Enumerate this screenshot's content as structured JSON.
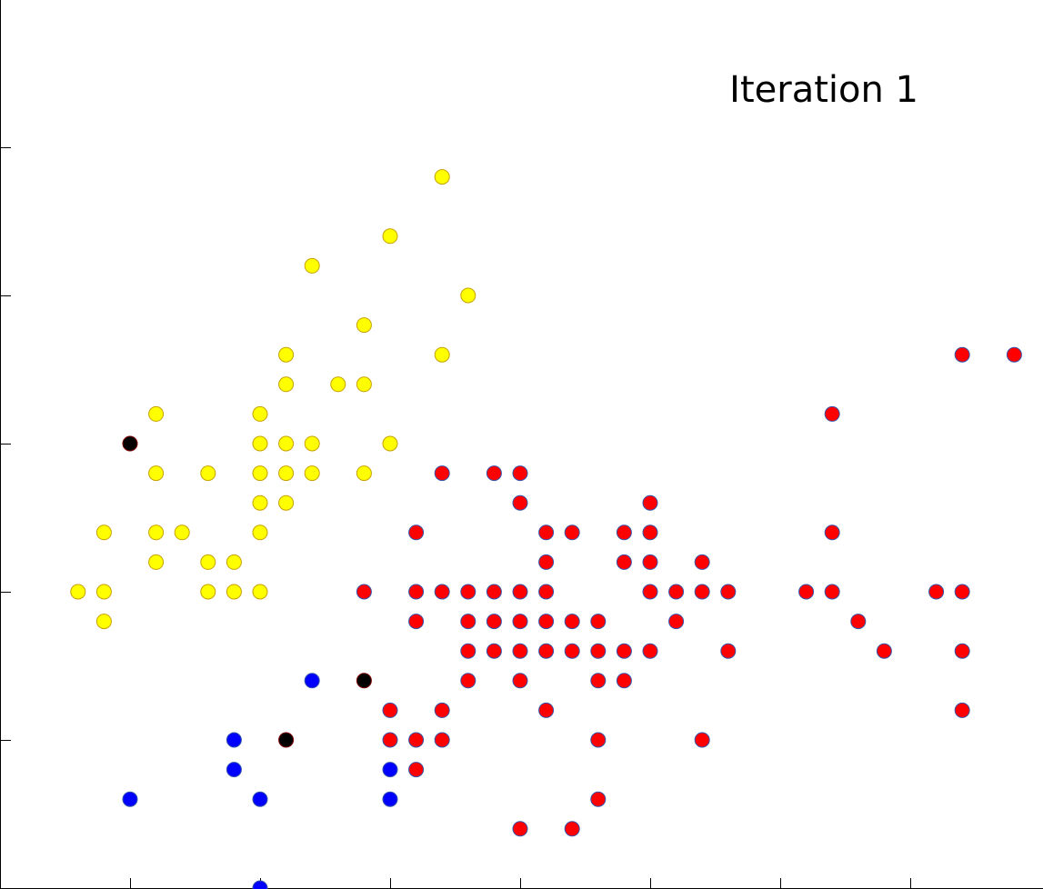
{
  "chart_data": {
    "type": "scatter",
    "title": "Iteration 1",
    "xlabel": "",
    "ylabel": "",
    "xlim": [
      4.2,
      8.0
    ],
    "ylim": [
      1.95,
      4.95
    ],
    "xticks": [
      4.5,
      5.0,
      5.5,
      6.0,
      6.5,
      7.0,
      7.5
    ],
    "yticks": [
      2.0,
      2.5,
      3.0,
      3.5,
      4.0,
      4.5
    ],
    "grid": false,
    "legend": "none",
    "series": [
      {
        "color": "#ffff00",
        "edgecolor": "#c8a000",
        "points": [
          [
            5.7,
            4.4
          ],
          [
            5.5,
            4.2
          ],
          [
            5.2,
            4.1
          ],
          [
            5.8,
            4.0
          ],
          [
            5.4,
            3.9
          ],
          [
            5.7,
            3.8
          ],
          [
            5.1,
            3.8
          ],
          [
            5.1,
            3.7
          ],
          [
            5.3,
            3.7
          ],
          [
            5.4,
            3.7
          ],
          [
            4.6,
            3.6
          ],
          [
            5.0,
            3.6
          ],
          [
            5.5,
            3.5
          ],
          [
            5.1,
            3.5
          ],
          [
            5.0,
            3.5
          ],
          [
            5.2,
            3.5
          ],
          [
            4.8,
            3.4
          ],
          [
            5.4,
            3.4
          ],
          [
            5.0,
            3.4
          ],
          [
            5.1,
            3.4
          ],
          [
            5.2,
            3.4
          ],
          [
            4.6,
            3.4
          ],
          [
            5.0,
            3.3
          ],
          [
            5.1,
            3.3
          ],
          [
            4.4,
            3.2
          ],
          [
            4.6,
            3.2
          ],
          [
            4.7,
            3.2
          ],
          [
            5.0,
            3.2
          ],
          [
            4.6,
            3.1
          ],
          [
            4.8,
            3.1
          ],
          [
            4.9,
            3.1
          ],
          [
            4.3,
            3.0
          ],
          [
            4.4,
            3.0
          ],
          [
            4.8,
            3.0
          ],
          [
            4.9,
            3.0
          ],
          [
            5.0,
            3.0
          ],
          [
            4.4,
            2.9
          ]
        ]
      },
      {
        "color": "#ff0000",
        "edgecolor": "#3355aa",
        "points": [
          [
            7.7,
            3.8
          ],
          [
            7.9,
            3.8
          ],
          [
            7.2,
            3.6
          ],
          [
            5.7,
            3.4
          ],
          [
            5.9,
            3.4
          ],
          [
            6.0,
            3.4
          ],
          [
            6.0,
            3.3
          ],
          [
            6.5,
            3.3
          ],
          [
            5.6,
            3.2
          ],
          [
            6.1,
            3.2
          ],
          [
            6.2,
            3.2
          ],
          [
            6.4,
            3.2
          ],
          [
            6.5,
            3.2
          ],
          [
            7.2,
            3.2
          ],
          [
            6.1,
            3.1
          ],
          [
            6.5,
            3.1
          ],
          [
            6.4,
            3.1
          ],
          [
            6.7,
            3.1
          ],
          [
            5.4,
            3.0
          ],
          [
            5.8,
            3.0
          ],
          [
            5.9,
            3.0
          ],
          [
            5.6,
            3.0
          ],
          [
            5.7,
            3.0
          ],
          [
            6.0,
            3.0
          ],
          [
            6.1,
            3.0
          ],
          [
            6.5,
            3.0
          ],
          [
            6.6,
            3.0
          ],
          [
            6.7,
            3.0
          ],
          [
            6.8,
            3.0
          ],
          [
            7.1,
            3.0
          ],
          [
            7.2,
            3.0
          ],
          [
            7.6,
            3.0
          ],
          [
            7.7,
            3.0
          ],
          [
            5.8,
            2.9
          ],
          [
            5.9,
            2.9
          ],
          [
            6.1,
            2.9
          ],
          [
            5.6,
            2.9
          ],
          [
            6.0,
            2.9
          ],
          [
            6.2,
            2.9
          ],
          [
            6.3,
            2.9
          ],
          [
            6.6,
            2.9
          ],
          [
            7.3,
            2.9
          ],
          [
            5.8,
            2.8
          ],
          [
            5.9,
            2.8
          ],
          [
            6.0,
            2.8
          ],
          [
            6.1,
            2.8
          ],
          [
            6.2,
            2.8
          ],
          [
            6.3,
            2.8
          ],
          [
            6.4,
            2.8
          ],
          [
            6.5,
            2.8
          ],
          [
            6.8,
            2.8
          ],
          [
            7.4,
            2.8
          ],
          [
            7.7,
            2.8
          ],
          [
            5.8,
            2.7
          ],
          [
            6.0,
            2.7
          ],
          [
            6.3,
            2.7
          ],
          [
            6.4,
            2.7
          ],
          [
            5.5,
            2.6
          ],
          [
            5.7,
            2.6
          ],
          [
            6.1,
            2.6
          ],
          [
            7.7,
            2.6
          ],
          [
            5.5,
            2.5
          ],
          [
            5.6,
            2.5
          ],
          [
            5.7,
            2.5
          ],
          [
            5.6,
            2.4
          ],
          [
            6.3,
            2.5
          ],
          [
            6.7,
            2.5
          ],
          [
            6.3,
            2.3
          ],
          [
            6.0,
            2.2
          ],
          [
            6.2,
            2.2
          ]
        ]
      },
      {
        "color": "#0000ff",
        "edgecolor": "#3355aa",
        "points": [
          [
            5.2,
            2.7
          ],
          [
            4.9,
            2.5
          ],
          [
            4.9,
            2.4
          ],
          [
            4.5,
            2.3
          ],
          [
            5.0,
            2.3
          ],
          [
            5.5,
            2.4
          ],
          [
            5.5,
            2.3
          ],
          [
            5.0,
            2.0
          ]
        ]
      },
      {
        "color": "#000000",
        "edgecolor": "#7a0000",
        "points": [
          [
            4.5,
            3.5
          ],
          [
            5.1,
            2.5
          ],
          [
            5.4,
            2.7
          ]
        ]
      }
    ]
  }
}
